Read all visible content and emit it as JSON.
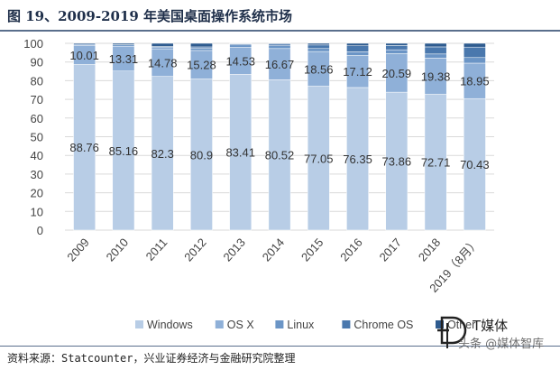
{
  "header": {
    "title": "图 19、2009-2019 年美国桌面操作系统市场"
  },
  "footer": {
    "source": "资料来源：Statcounter，兴业证券经济与金融研究院整理"
  },
  "watermark": {
    "brand": "T媒体",
    "account": "头条 @媒体智库"
  },
  "colors": {
    "Windows": "#b8cde6",
    "OS X": "#8fb0d8",
    "Linux": "#6b95c6",
    "Chrome OS": "#4a78ad",
    "Other": "#2e5b8f"
  },
  "chart_data": {
    "type": "bar",
    "stacked": true,
    "categories": [
      "2009",
      "2010",
      "2011",
      "2012",
      "2013",
      "2014",
      "2015",
      "2016",
      "2017",
      "2018",
      "2019（8月）"
    ],
    "series": [
      {
        "name": "Windows",
        "values": [
          88.76,
          85.16,
          82.3,
          80.9,
          83.41,
          80.52,
          77.05,
          76.35,
          73.86,
          72.71,
          70.43
        ]
      },
      {
        "name": "OS X",
        "values": [
          10.01,
          13.31,
          14.78,
          15.28,
          14.53,
          16.67,
          18.56,
          17.12,
          20.59,
          19.38,
          18.95
        ]
      },
      {
        "name": "Linux",
        "values": [
          0.7,
          0.8,
          0.9,
          1.1,
          1.2,
          1.5,
          1.6,
          2.0,
          2.1,
          2.2,
          3.0
        ]
      },
      {
        "name": "Chrome OS",
        "values": [
          0.0,
          0.0,
          0.3,
          0.8,
          0.6,
          0.9,
          1.9,
          3.2,
          2.3,
          3.8,
          5.6
        ]
      },
      {
        "name": "Other",
        "values": [
          0.53,
          0.73,
          1.72,
          1.92,
          0.26,
          0.41,
          0.89,
          1.33,
          1.15,
          1.91,
          2.02
        ]
      }
    ],
    "data_labels": {
      "Windows": [
        "88.76",
        "85.16",
        "82.3",
        "80.9",
        "83.41",
        "80.52",
        "77.05",
        "76.35",
        "73.86",
        "72.71",
        "70.43"
      ],
      "OS X": [
        "10.01",
        "13.31",
        "14.78",
        "15.28",
        "14.53",
        "16.67",
        "18.56",
        "17.12",
        "20.59",
        "19.38",
        "18.95"
      ]
    },
    "ylim": [
      0,
      100
    ],
    "yticks": [
      0,
      10,
      20,
      30,
      40,
      50,
      60,
      70,
      80,
      90,
      100
    ],
    "grid": true,
    "legend_position": "bottom"
  }
}
